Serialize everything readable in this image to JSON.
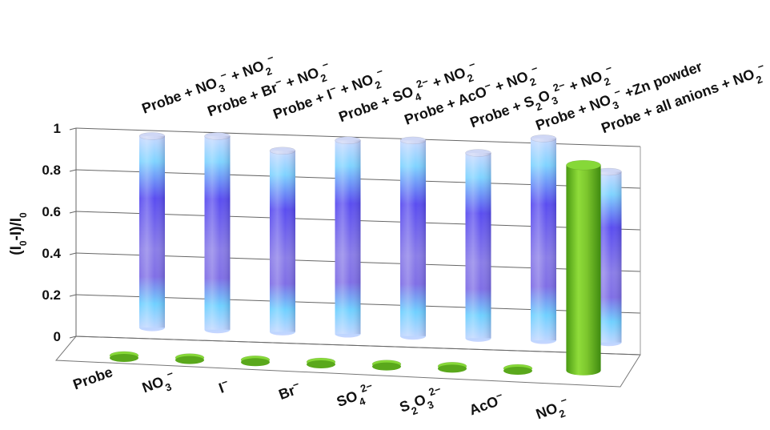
{
  "chart_data": {
    "type": "bar",
    "style": "3d-cylinder",
    "ylabel": "(I0-I)/I0",
    "ylabel_parts": {
      "main": "(I",
      "sub1": "0",
      "mid": "-I)/I",
      "sub2": "0"
    },
    "ylim": [
      0,
      1
    ],
    "yticks": [
      "0",
      "0.2",
      "0.4",
      "0.6",
      "0.8",
      "1"
    ],
    "grid": true,
    "categories": [
      {
        "base": "Probe",
        "sup": "",
        "sub": ""
      },
      {
        "base": "NO",
        "sub": "3",
        "sup": "−"
      },
      {
        "base": "I",
        "sub": "",
        "sup": "−"
      },
      {
        "base": "Br",
        "sub": "",
        "sup": "−"
      },
      {
        "base": "SO",
        "sub": "4",
        "sup": "2−"
      },
      {
        "base": "S",
        "sub": "2",
        "mid": "O",
        "sub2": "3",
        "sup": "2−"
      },
      {
        "base": "AcO",
        "sub": "",
        "sup": "−"
      },
      {
        "base": "NO",
        "sub": "2",
        "sup": "−"
      }
    ],
    "series": [
      {
        "color": "#7cc62d",
        "values": [
          0.0,
          0.0,
          0.0,
          0.0,
          0.0,
          0.0,
          0.0,
          0.95
        ]
      },
      {
        "color": "#5a4df0",
        "values": [
          0.92,
          0.93,
          0.87,
          0.93,
          0.94,
          0.89,
          0.97,
          0.82
        ]
      }
    ],
    "back_labels": [
      [
        {
          "t": "Probe + NO"
        },
        {
          "t": "3",
          "s": "sub"
        },
        {
          "t": "−",
          "s": "sup"
        },
        {
          "t": " + NO"
        },
        {
          "t": "2",
          "s": "sub"
        },
        {
          "t": "−",
          "s": "sup"
        }
      ],
      [
        {
          "t": "Probe + Br"
        },
        {
          "t": "−",
          "s": "sup"
        },
        {
          "t": " + NO"
        },
        {
          "t": "2",
          "s": "sub"
        },
        {
          "t": "−",
          "s": "sup"
        }
      ],
      [
        {
          "t": "Probe + I"
        },
        {
          "t": "−",
          "s": "sup"
        },
        {
          "t": " + NO"
        },
        {
          "t": "2",
          "s": "sub"
        },
        {
          "t": "−",
          "s": "sup"
        }
      ],
      [
        {
          "t": "Probe + SO"
        },
        {
          "t": "4",
          "s": "sub"
        },
        {
          "t": "2−",
          "s": "sup"
        },
        {
          "t": " + NO"
        },
        {
          "t": "2",
          "s": "sub"
        },
        {
          "t": "−",
          "s": "sup"
        }
      ],
      [
        {
          "t": "Probe + AcO"
        },
        {
          "t": "−",
          "s": "sup"
        },
        {
          "t": " + NO"
        },
        {
          "t": "2",
          "s": "sub"
        },
        {
          "t": "−",
          "s": "sup"
        }
      ],
      [
        {
          "t": "Probe + S"
        },
        {
          "t": "2",
          "s": "sub"
        },
        {
          "t": "O"
        },
        {
          "t": "3",
          "s": "sub"
        },
        {
          "t": "2−",
          "s": "sup"
        },
        {
          "t": " + NO"
        },
        {
          "t": "2",
          "s": "sub"
        },
        {
          "t": "−",
          "s": "sup"
        }
      ],
      [
        {
          "t": "Probe + NO"
        },
        {
          "t": "3",
          "s": "sub"
        },
        {
          "t": "−",
          "s": "sup"
        },
        {
          "t": " +Zn powder"
        }
      ],
      [
        {
          "t": "Probe + all anions + NO"
        },
        {
          "t": "2",
          "s": "sub"
        },
        {
          "t": "−",
          "s": "sup"
        }
      ]
    ]
  }
}
